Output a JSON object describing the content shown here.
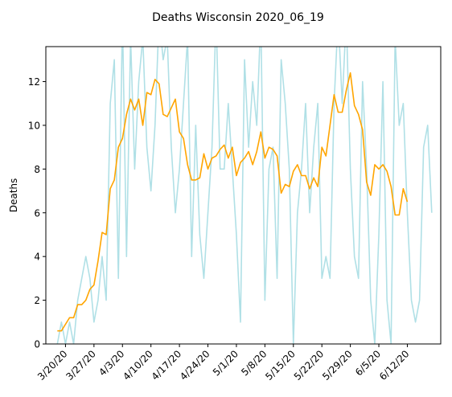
{
  "chart_data": {
    "type": "line",
    "title": "Deaths Wisconsin 2020_06_19",
    "xlabel": "",
    "ylabel": "Deaths",
    "ylim": [
      0,
      13.6
    ],
    "yticks": [
      0,
      2,
      4,
      6,
      8,
      10,
      12
    ],
    "xticks": [
      "3/20/20",
      "3/27/20",
      "4/3/20",
      "4/10/20",
      "4/17/20",
      "4/24/20",
      "5/1/20",
      "5/8/20",
      "5/15/20",
      "5/22/20",
      "5/29/20",
      "6/5/20",
      "6/12/20"
    ],
    "x_start": "3/18/20",
    "grid": false,
    "legend": "none",
    "series": [
      {
        "role": "daily",
        "color": "#b0e0e6",
        "values": [
          0,
          1,
          0,
          1,
          0,
          2,
          3,
          4,
          3,
          1,
          2,
          4,
          2,
          11,
          13,
          3,
          15,
          4,
          14,
          8,
          12,
          14,
          9,
          7,
          10,
          15,
          13,
          14,
          9,
          6,
          8,
          11,
          14,
          4,
          10,
          5,
          3,
          6,
          9,
          15,
          8,
          8,
          11,
          8,
          5,
          1,
          13,
          9,
          12,
          10,
          15,
          2,
          8,
          9,
          3,
          13,
          11,
          8,
          0,
          6,
          8,
          11,
          6,
          9,
          11,
          3,
          4,
          3,
          11,
          15,
          11,
          15,
          8,
          4,
          3,
          12,
          8,
          2,
          0,
          5,
          12,
          2,
          0,
          14,
          10,
          11,
          6,
          2,
          1,
          2,
          9,
          10,
          6
        ]
      },
      {
        "role": "average",
        "color": "#ffa500",
        "values": [
          0.6,
          0.6,
          0.9,
          1.2,
          1.2,
          1.8,
          1.8,
          2.0,
          2.5,
          2.7,
          3.8,
          5.1,
          5.0,
          7.1,
          7.5,
          9.0,
          9.4,
          10.5,
          11.2,
          10.7,
          11.2,
          10.0,
          11.5,
          11.4,
          12.1,
          11.9,
          10.5,
          10.4,
          10.8,
          11.2,
          9.7,
          9.4,
          8.2,
          7.5,
          7.5,
          7.6,
          8.7,
          8.0,
          8.5,
          8.6,
          8.9,
          9.1,
          8.5,
          9.0,
          7.7,
          8.3,
          8.5,
          8.8,
          8.2,
          8.8,
          9.7,
          8.5,
          9.0,
          8.9,
          8.6,
          6.9,
          7.3,
          7.2,
          7.9,
          8.2,
          7.7,
          7.7,
          7.1,
          7.6,
          7.2,
          9.0,
          8.6,
          10.0,
          11.4,
          10.6,
          10.6,
          11.6,
          12.4,
          10.9,
          10.5,
          9.8,
          7.4,
          6.8,
          8.2,
          8.0,
          8.2,
          7.9,
          7.2,
          5.9,
          5.9,
          7.1,
          6.5
        ]
      }
    ]
  }
}
